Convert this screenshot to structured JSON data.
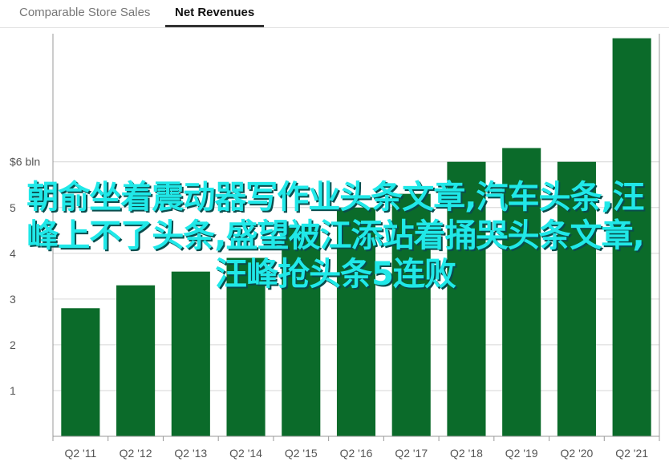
{
  "tabs": [
    {
      "label": "Comparable Store Sales",
      "active": false
    },
    {
      "label": "Net Revenues",
      "active": true
    }
  ],
  "overlay_text": "朝俞坐着震动器写作业头条文章,汽车头条,汪峰上不了头条,盛望被江添站着捅哭头条文章,汪峰抢头条5连败",
  "colors": {
    "bar": "#0b6b2a",
    "grid": "#d6d6d6",
    "axis": "#999999",
    "label": "#555555",
    "overlay_text": "#20e8e8"
  },
  "chart_data": {
    "type": "bar",
    "categories": [
      "Q2 '11",
      "Q2 '12",
      "Q2 '13",
      "Q2 '14",
      "Q2 '15",
      "Q2 '16",
      "Q2 '17",
      "Q2 '18",
      "Q2 '19",
      "Q2 '20",
      "Q2 '21"
    ],
    "values": [
      2.8,
      3.3,
      3.6,
      3.9,
      4.6,
      5.0,
      5.3,
      6.0,
      6.3,
      6.0,
      8.7
    ],
    "yticks": [
      {
        "value": 1,
        "label": "1"
      },
      {
        "value": 2,
        "label": "2"
      },
      {
        "value": 3,
        "label": "3"
      },
      {
        "value": 4,
        "label": "4"
      },
      {
        "value": 5,
        "label": "5"
      },
      {
        "value": 6,
        "label": "$6 bln"
      }
    ],
    "ylim": [
      0,
      8.8
    ],
    "grid": true,
    "title": "",
    "xlabel": "",
    "ylabel": ""
  }
}
